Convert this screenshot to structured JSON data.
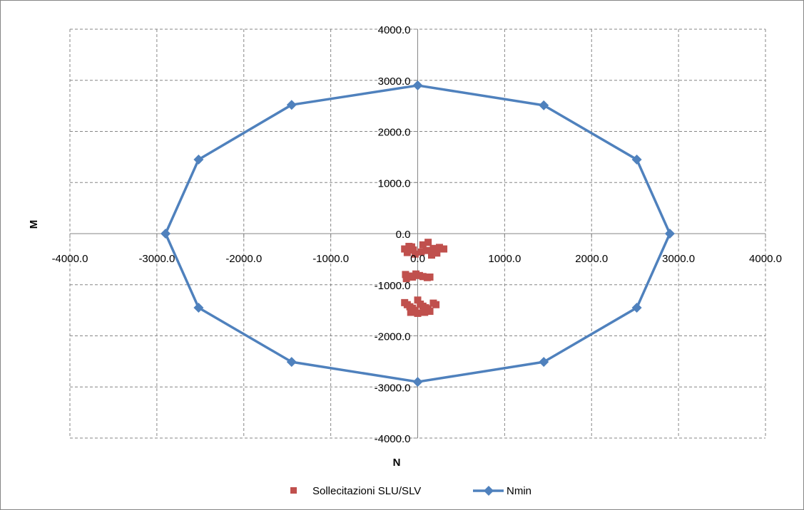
{
  "chart_data": {
    "type": "scatter",
    "xlabel": "N",
    "ylabel": "M",
    "xlim": [
      -4000,
      4000
    ],
    "ylim": [
      -4000,
      4000
    ],
    "x_ticks": [
      "-4000.0",
      "-3000.0",
      "-2000.0",
      "-1000.0",
      "0.0",
      "1000.0",
      "2000.0",
      "3000.0",
      "4000.0"
    ],
    "y_ticks": [
      "4000.0",
      "3000.0",
      "2000.0",
      "1000.0",
      "0.0",
      "-1000.0",
      "-2000.0",
      "-3000.0",
      "-4000.0"
    ],
    "grid": true,
    "legend_position": "bottom",
    "series": [
      {
        "name": "Sollecitazioni SLU/SLV",
        "kind": "scatter",
        "color": "#C0504D",
        "marker": "square",
        "points": [
          [
            -100,
            -250
          ],
          [
            -70,
            -260
          ],
          [
            -150,
            -300
          ],
          [
            -50,
            -320
          ],
          [
            -120,
            -370
          ],
          [
            -30,
            -400
          ],
          [
            120,
            -170
          ],
          [
            60,
            -220
          ],
          [
            180,
            -290
          ],
          [
            250,
            -270
          ],
          [
            100,
            -330
          ],
          [
            40,
            -360
          ],
          [
            220,
            -380
          ],
          [
            160,
            -420
          ],
          [
            300,
            -300
          ],
          [
            -140,
            -800
          ],
          [
            -100,
            -830
          ],
          [
            -60,
            -850
          ],
          [
            -20,
            -790
          ],
          [
            20,
            -820
          ],
          [
            60,
            -840
          ],
          [
            140,
            -850
          ],
          [
            110,
            -860
          ],
          [
            -130,
            -880
          ],
          [
            -150,
            -1350
          ],
          [
            -120,
            -1390
          ],
          [
            -90,
            -1430
          ],
          [
            -60,
            -1460
          ],
          [
            -30,
            -1500
          ],
          [
            0,
            -1300
          ],
          [
            30,
            -1380
          ],
          [
            60,
            -1420
          ],
          [
            90,
            -1450
          ],
          [
            140,
            -1520
          ],
          [
            180,
            -1360
          ],
          [
            210,
            -1390
          ],
          [
            -80,
            -1540
          ],
          [
            0,
            -1560
          ],
          [
            80,
            -1540
          ],
          [
            120,
            -1470
          ]
        ]
      },
      {
        "name": "Nmin",
        "kind": "line",
        "color": "#4F81BD",
        "marker": "diamond",
        "points": [
          [
            2900,
            0
          ],
          [
            2520,
            1450
          ],
          [
            1450,
            2510
          ],
          [
            0,
            2900
          ],
          [
            -1450,
            2520
          ],
          [
            -2520,
            1450
          ],
          [
            -2900,
            0
          ],
          [
            -2520,
            -1450
          ],
          [
            -1450,
            -2510
          ],
          [
            0,
            -2900
          ],
          [
            1450,
            -2510
          ],
          [
            2520,
            -1450
          ],
          [
            2900,
            0
          ]
        ]
      }
    ]
  }
}
